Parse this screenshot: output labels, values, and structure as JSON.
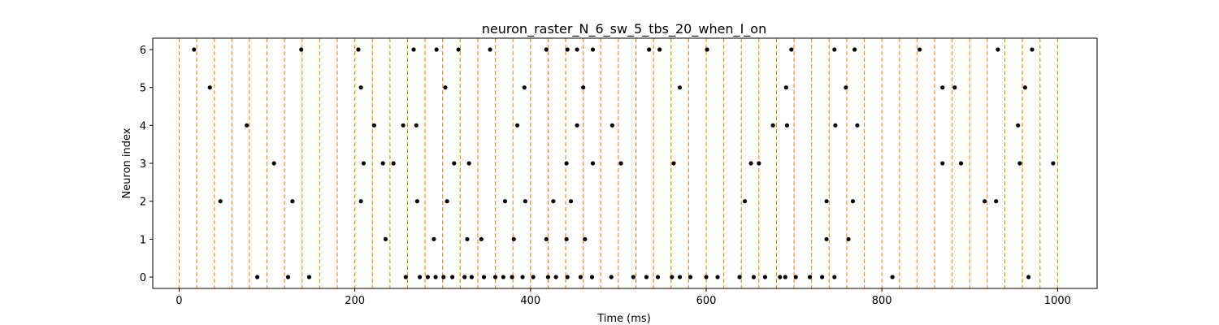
{
  "chart_data": {
    "type": "scatter",
    "title": "neuron_raster_N_6_sw_5_tbs_20_when_I_on",
    "xlabel": "Time (ms)",
    "ylabel": "Neuron index",
    "xlim": [
      -30,
      1045
    ],
    "ylim": [
      -0.3,
      6.3
    ],
    "x_ticks": [
      0,
      200,
      400,
      600,
      800,
      1000
    ],
    "y_ticks": [
      0,
      1,
      2,
      3,
      4,
      5,
      6
    ],
    "grid": false,
    "legend": "none",
    "marker_color": "#000000",
    "vline_color": "#ff7f0e",
    "vline_style": "dashed",
    "vlines_x": [
      0,
      20,
      40,
      60,
      80,
      100,
      120,
      140,
      160,
      180,
      200,
      220,
      240,
      260,
      280,
      300,
      320,
      340,
      360,
      380,
      400,
      420,
      440,
      460,
      480,
      500,
      520,
      540,
      560,
      580,
      600,
      620,
      640,
      660,
      680,
      700,
      720,
      740,
      760,
      780,
      800,
      820,
      840,
      860,
      880,
      900,
      920,
      940,
      960,
      980,
      1000
    ],
    "series": [
      {
        "neuron": 0,
        "times": [
          89,
          124,
          148,
          258,
          274,
          283,
          292,
          301,
          311,
          325,
          333,
          347,
          360,
          369,
          379,
          391,
          403,
          420,
          429,
          442,
          457,
          470,
          492,
          517,
          532,
          545,
          561,
          570,
          582,
          600,
          613,
          638,
          654,
          667,
          684,
          690,
          702,
          718,
          732,
          746,
          812,
          967
        ]
      },
      {
        "neuron": 1,
        "times": [
          235,
          290,
          328,
          344,
          381,
          418,
          441,
          462,
          737,
          762
        ]
      },
      {
        "neuron": 2,
        "times": [
          47,
          129,
          207,
          271,
          305,
          371,
          394,
          426,
          446,
          644,
          737,
          767,
          917,
          930
        ]
      },
      {
        "neuron": 3,
        "times": [
          108,
          210,
          232,
          244,
          313,
          330,
          441,
          471,
          503,
          563,
          651,
          660,
          869,
          890,
          957,
          995
        ]
      },
      {
        "neuron": 4,
        "times": [
          77,
          222,
          255,
          270,
          385,
          453,
          493,
          676,
          692,
          747,
          772,
          955
        ]
      },
      {
        "neuron": 5,
        "times": [
          35,
          207,
          303,
          393,
          460,
          570,
          691,
          759,
          869,
          883,
          963
        ]
      },
      {
        "neuron": 6,
        "times": [
          17,
          139,
          204,
          267,
          293,
          318,
          354,
          418,
          442,
          453,
          471,
          535,
          547,
          601,
          697,
          746,
          769,
          843,
          932,
          971
        ]
      }
    ]
  }
}
